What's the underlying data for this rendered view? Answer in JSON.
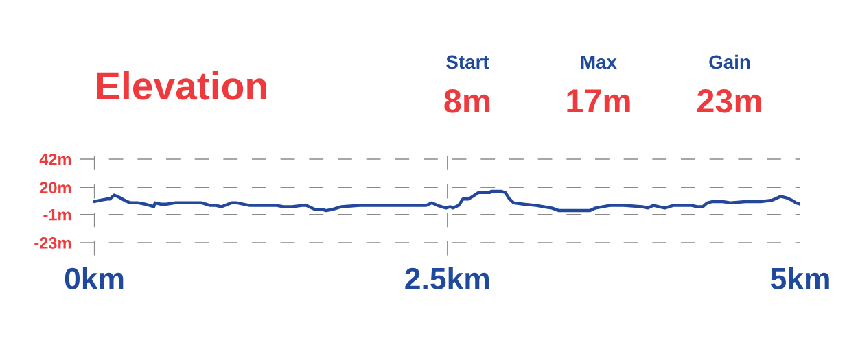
{
  "chart_data": {
    "type": "line",
    "title": "Elevation",
    "annotations": [
      "Start",
      "8m",
      "Max",
      "17m",
      "Gain",
      "23m"
    ],
    "x": [
      0.0,
      0.04,
      0.09,
      0.11,
      0.14,
      0.18,
      0.23,
      0.26,
      0.31,
      0.36,
      0.42,
      0.43,
      0.47,
      0.51,
      0.57,
      0.64,
      0.76,
      0.82,
      0.86,
      0.9,
      0.97,
      1.01,
      1.1,
      1.29,
      1.34,
      1.4,
      1.47,
      1.5,
      1.56,
      1.61,
      1.64,
      1.69,
      1.75,
      1.88,
      2.03,
      2.23,
      2.35,
      2.39,
      2.43,
      2.49,
      2.52,
      2.54,
      2.58,
      2.61,
      2.65,
      2.68,
      2.72,
      2.8,
      2.81,
      2.88,
      2.91,
      2.94,
      2.97,
      3.04,
      3.13,
      3.18,
      3.24,
      3.29,
      3.34,
      3.45,
      3.51,
      3.55,
      3.65,
      3.75,
      3.88,
      3.92,
      3.96,
      4.04,
      4.1,
      4.23,
      4.27,
      4.31,
      4.34,
      4.38,
      4.45,
      4.51,
      4.61,
      4.72,
      4.8,
      4.86,
      4.9,
      4.94,
      4.97,
      5.0
    ],
    "series": [
      {
        "color": "#22479b",
        "values": [
          9,
          10,
          11,
          11,
          14,
          12,
          9,
          8,
          8,
          7,
          5,
          8,
          7,
          7,
          8,
          8,
          8,
          6,
          6,
          5,
          8,
          8,
          6,
          6,
          5,
          5,
          6,
          6,
          3,
          3,
          2,
          3,
          5,
          6,
          6,
          6,
          6,
          8,
          6,
          4,
          5,
          4,
          6,
          11,
          11,
          13,
          16,
          16,
          17,
          17,
          16,
          11,
          8,
          7,
          6,
          5,
          4,
          2,
          2,
          2,
          2,
          4,
          6,
          6,
          5,
          4,
          6,
          4,
          6,
          6,
          5,
          5,
          8,
          9,
          9,
          8,
          9,
          9,
          10,
          13,
          12,
          10,
          8,
          7
        ]
      }
    ],
    "xlim": [
      -0.1,
      5
    ],
    "xticks": [
      {
        "value": 0,
        "label": "0km"
      },
      {
        "value": 2.5,
        "label": "2.5km"
      },
      {
        "value": 5,
        "label": "5km"
      }
    ],
    "ylim": [
      -33,
      55
    ],
    "yticks": [
      {
        "value": 42,
        "label": "42m"
      },
      {
        "value": 20,
        "label": "20m"
      },
      {
        "value": -1,
        "label": "-1m"
      },
      {
        "value": -23,
        "label": "-23m"
      }
    ],
    "grid": true,
    "line_style": "solid"
  }
}
